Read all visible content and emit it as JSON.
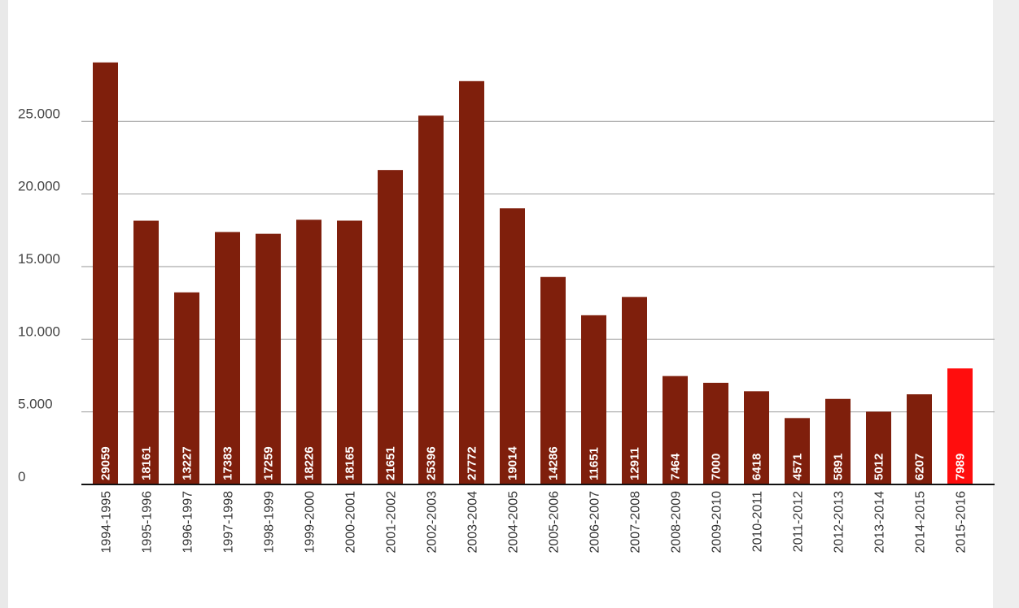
{
  "chart_data": {
    "type": "bar",
    "categories": [
      "1994-1995",
      "1995-1996",
      "1996-1997",
      "1997-1998",
      "1998-1999",
      "1999-2000",
      "2000-2001",
      "2001-2002",
      "2002-2003",
      "2003-2004",
      "2004-2005",
      "2005-2006",
      "2006-2007",
      "2007-2008",
      "2008-2009",
      "2009-2010",
      "2010-2011",
      "2011-2012",
      "2012-2013",
      "2013-2014",
      "2014-2015",
      "2015-2016"
    ],
    "values": [
      29059,
      18161,
      13227,
      17383,
      17259,
      18226,
      18165,
      21651,
      25396,
      27772,
      19014,
      14286,
      11651,
      12911,
      7464,
      7000,
      6418,
      4571,
      5891,
      5012,
      6207,
      7989
    ],
    "data_labels": [
      "29059",
      "18161",
      "13227",
      "17383",
      "17259",
      "18226",
      "18165",
      "21651",
      "25396",
      "27772",
      "19014",
      "14286",
      "11651",
      "12911",
      "7464",
      "7000",
      "6418",
      "4571",
      "5891",
      "5012",
      "6207",
      "7989"
    ],
    "y_ticks": [
      {
        "value": 0,
        "label": "0"
      },
      {
        "value": 5000,
        "label": "5.000"
      },
      {
        "value": 10000,
        "label": "10.000"
      },
      {
        "value": 15000,
        "label": "15.000"
      },
      {
        "value": 20000,
        "label": "20.000"
      },
      {
        "value": 25000,
        "label": "25.000"
      }
    ],
    "ylim": [
      0,
      30000
    ],
    "grid": true,
    "colors": {
      "bar": "#7f1f0c",
      "highlight": "#ff0d0d",
      "highlight_index": 21,
      "grid": "#aaaaaa",
      "axis": "#111111"
    }
  }
}
